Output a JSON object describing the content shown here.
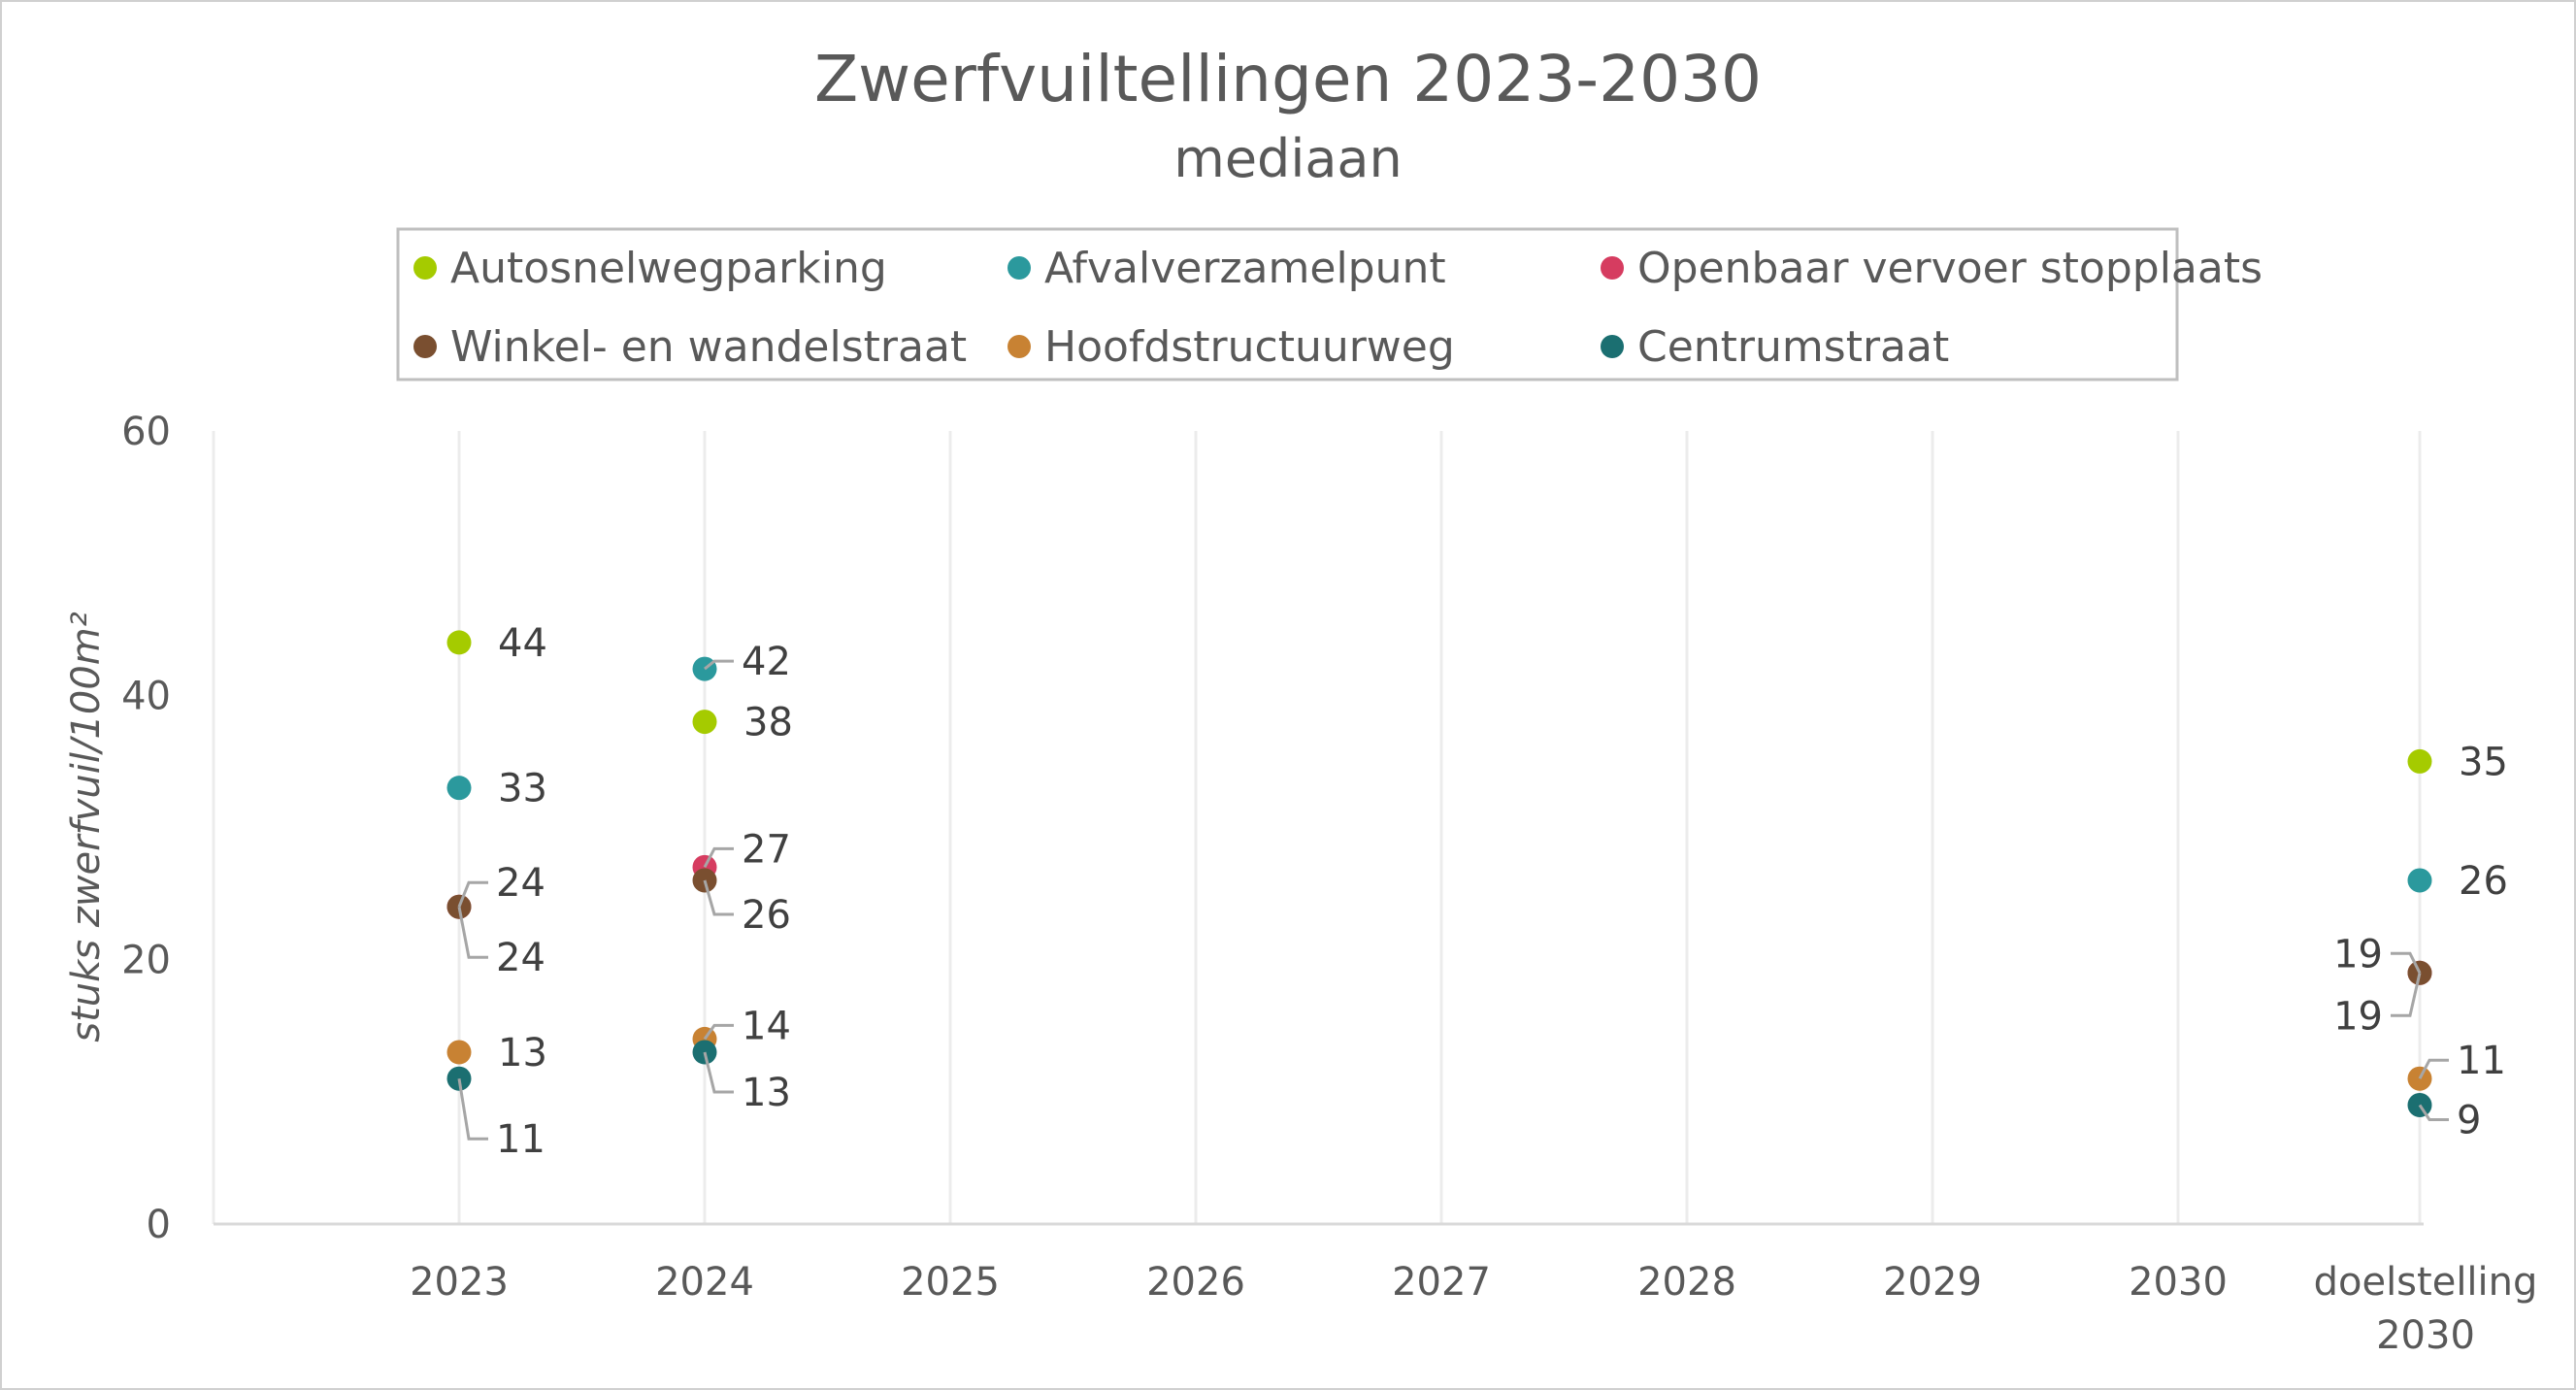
{
  "chart_data": {
    "type": "scatter",
    "title": "Zwerfvuiltellingen 2023-2030",
    "subtitle": "mediaan",
    "ylabel": "stuks zwerfvuil/100m²",
    "xlabel": "",
    "ylim": [
      0,
      60
    ],
    "yticks": [
      "0",
      "20",
      "40",
      "60"
    ],
    "grid": "vertical",
    "legend_position": "top",
    "categories": [
      "2023",
      "2024",
      "2025",
      "2026",
      "2027",
      "2028",
      "2029",
      "2030",
      "doelstelling 2030"
    ],
    "category_lines": [
      [
        "2023"
      ],
      [
        "2024"
      ],
      [
        "2025"
      ],
      [
        "2026"
      ],
      [
        "2027"
      ],
      [
        "2028"
      ],
      [
        "2029"
      ],
      [
        "2030"
      ],
      [
        "doelstelling",
        "2030"
      ]
    ],
    "series": [
      {
        "name": "Autosnelwegparking",
        "color": "#a5cb00",
        "values": [
          44,
          38,
          null,
          null,
          null,
          null,
          null,
          null,
          35
        ]
      },
      {
        "name": "Afvalverzamelpunt",
        "color": "#2b999d",
        "values": [
          33,
          42,
          null,
          null,
          null,
          null,
          null,
          null,
          26
        ]
      },
      {
        "name": "Openbaar vervoer stopplaats",
        "color": "#d63c60",
        "values": [
          24,
          27,
          null,
          null,
          null,
          null,
          null,
          null,
          19
        ]
      },
      {
        "name": "Winkel- en wandelstraat",
        "color": "#7a4f30",
        "values": [
          24,
          26,
          null,
          null,
          null,
          null,
          null,
          null,
          19
        ]
      },
      {
        "name": "Hoofdstructuurweg",
        "color": "#c88233",
        "values": [
          13,
          14,
          null,
          null,
          null,
          null,
          null,
          null,
          11
        ]
      },
      {
        "name": "Centrumstraat",
        "color": "#1b6f71",
        "values": [
          11,
          13,
          null,
          null,
          null,
          null,
          null,
          null,
          9
        ]
      }
    ]
  }
}
